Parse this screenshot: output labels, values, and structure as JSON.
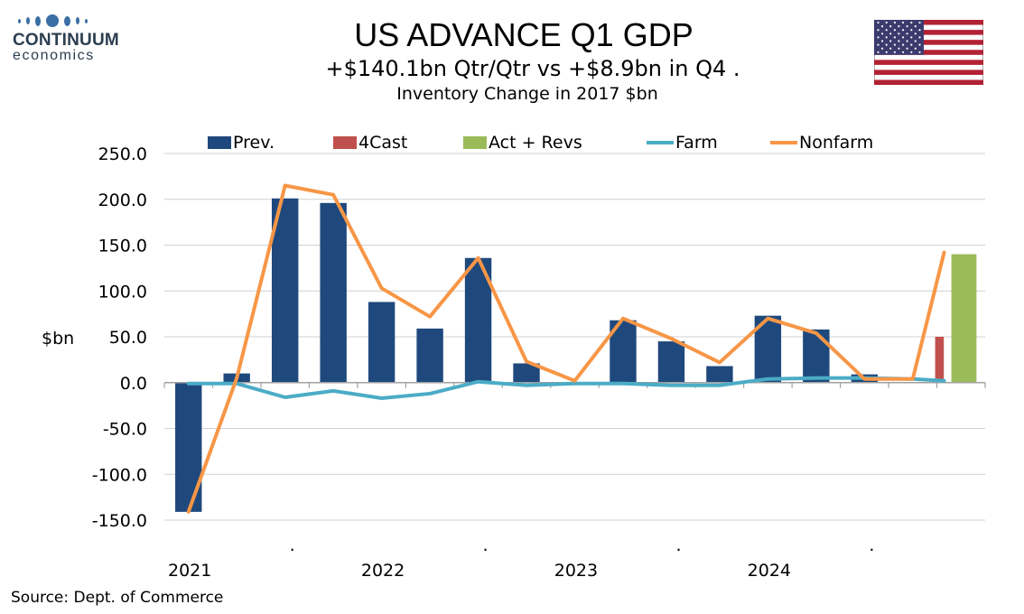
{
  "logo": {
    "name": "CONTINUUM",
    "sub": "economics"
  },
  "header": {
    "title": "US ADVANCE Q1 GDP",
    "subtitle": "+$140.1bn Qtr/Qtr vs +$8.9bn in Q4 .",
    "subtitle2": "Inventory Change in 2017 $bn"
  },
  "flag": {
    "country": "US",
    "icon": "us-flag-icon"
  },
  "footer": {
    "source": "Source: Dept. of Commerce"
  },
  "colors": {
    "prev": "#1f497d",
    "forecast": "#c0504d",
    "actual": "#9bbb59",
    "farm": "#4bacc6",
    "nonfarm": "#f79646"
  },
  "chart_data": {
    "type": "bar",
    "categories": [
      "2021 Q1",
      "2021 Q2",
      "2021 Q3",
      "2021 Q4",
      "2022 Q1",
      "2022 Q2",
      "2022 Q3",
      "2022 Q4",
      "2023 Q1",
      "2023 Q2",
      "2023 Q3",
      "2023 Q4",
      "2024 Q1",
      "2024 Q2",
      "2024 Q3",
      "2024 Q4",
      "2025 Q1"
    ],
    "x_tick_labels": [
      "2021",
      ".",
      "2022",
      ".",
      "2023",
      ".",
      "2024",
      "."
    ],
    "ylabel": "$bn",
    "ylim": [
      -150,
      250
    ],
    "yticks": [
      "250.0",
      "200.0",
      "150.0",
      "100.0",
      "50.0",
      "0.0",
      "-50.0",
      "-100.0",
      "-150.0"
    ],
    "grid": true,
    "legend_position": "top",
    "series": [
      {
        "name": "Prev.",
        "kind": "bar",
        "color": "#1f497d",
        "values": [
          -141,
          10,
          201,
          196,
          88,
          59,
          136,
          21,
          null,
          68,
          45,
          18,
          73,
          58,
          9,
          null,
          null
        ]
      },
      {
        "name": "4Cast",
        "kind": "bar",
        "color": "#c0504d",
        "values": [
          null,
          null,
          null,
          null,
          null,
          null,
          null,
          null,
          null,
          null,
          null,
          null,
          null,
          null,
          null,
          null,
          50
        ]
      },
      {
        "name": "Act + Revs",
        "kind": "bar",
        "color": "#9bbb59",
        "values": [
          null,
          null,
          null,
          null,
          null,
          null,
          null,
          null,
          null,
          null,
          null,
          null,
          null,
          null,
          null,
          null,
          140.1
        ]
      },
      {
        "name": "Farm",
        "kind": "line",
        "color": "#4bacc6",
        "values": [
          -1,
          -1,
          -16,
          -9,
          -17,
          -12,
          1,
          -3,
          -1,
          -1,
          -3,
          -3,
          4,
          5,
          5,
          4,
          2
        ]
      },
      {
        "name": "Nonfarm",
        "kind": "line",
        "color": "#f79646",
        "values": [
          -141,
          5,
          215,
          205,
          103,
          72,
          136,
          23,
          2,
          70,
          48,
          22,
          70,
          54,
          4,
          4,
          142
        ]
      }
    ]
  }
}
